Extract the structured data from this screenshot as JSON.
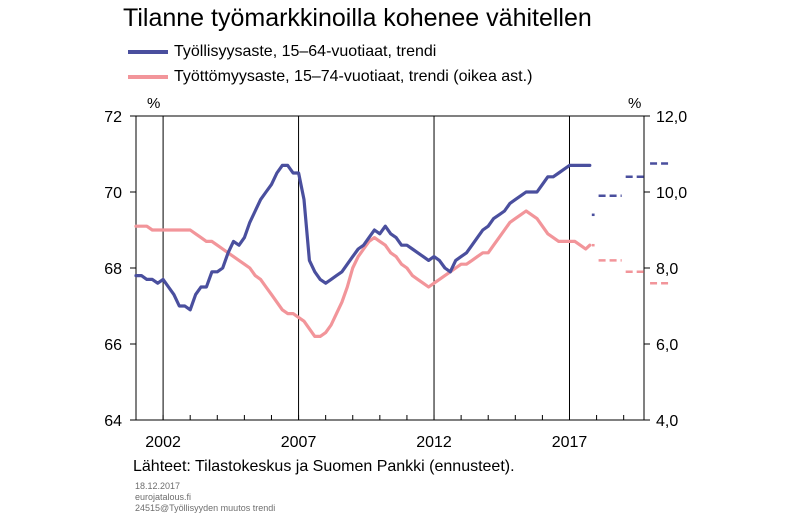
{
  "title": "Tilanne työmarkkinoilla kohenee vähitellen",
  "source": "Lähteet:  Tilastokeskus ja Suomen Pankki (ennusteet).",
  "meta": {
    "date": "18.12.2017",
    "site": "eurojatalous.fi",
    "code": "24515@Työllisyyden muutos trendi"
  },
  "colors": {
    "employment": "#4a4f9e",
    "unemployment": "#f2959a",
    "grid": "#000000"
  },
  "chart_data": {
    "type": "line",
    "title": "Tilanne työmarkkinoilla kohenee vähitellen",
    "x_ticks": [
      "2002",
      "2007",
      "2012",
      "2017"
    ],
    "x_range": [
      2001.0,
      2019.75
    ],
    "y_left": {
      "unit": "%",
      "range": [
        64,
        72
      ],
      "ticks": [
        "72",
        "70",
        "68",
        "66",
        "64"
      ]
    },
    "y_right": {
      "unit": "%",
      "range": [
        4.0,
        12.0
      ],
      "ticks": [
        "12,0",
        "10,0",
        "8,0",
        "6,0",
        "4,0"
      ]
    },
    "grid": "vertical",
    "legend_position": "top-left",
    "series": [
      {
        "name": "Työllisyysaste, 15–64-vuotiaat, trendi",
        "axis": "left",
        "x": [
          2001.0,
          2001.2,
          2001.4,
          2001.6,
          2001.8,
          2002.0,
          2002.2,
          2002.4,
          2002.6,
          2002.8,
          2003.0,
          2003.2,
          2003.4,
          2003.6,
          2003.8,
          2004.0,
          2004.2,
          2004.4,
          2004.6,
          2004.8,
          2005.0,
          2005.2,
          2005.4,
          2005.6,
          2005.8,
          2006.0,
          2006.2,
          2006.4,
          2006.6,
          2006.8,
          2007.0,
          2007.2,
          2007.4,
          2007.6,
          2007.8,
          2008.0,
          2008.2,
          2008.4,
          2008.6,
          2008.8,
          2009.0,
          2009.2,
          2009.4,
          2009.6,
          2009.8,
          2010.0,
          2010.2,
          2010.4,
          2010.6,
          2010.8,
          2011.0,
          2011.2,
          2011.4,
          2011.6,
          2011.8,
          2012.0,
          2012.2,
          2012.4,
          2012.6,
          2012.8,
          2013.0,
          2013.2,
          2013.4,
          2013.6,
          2013.8,
          2014.0,
          2014.2,
          2014.4,
          2014.6,
          2014.8,
          2015.0,
          2015.2,
          2015.4,
          2015.6,
          2015.8,
          2016.0,
          2016.2,
          2016.4,
          2016.6,
          2016.8,
          2017.0,
          2017.2,
          2017.4,
          2017.6,
          2017.75
        ],
        "values": [
          67.8,
          67.8,
          67.7,
          67.7,
          67.6,
          67.7,
          67.5,
          67.3,
          67.0,
          67.0,
          66.9,
          67.3,
          67.5,
          67.5,
          67.9,
          67.9,
          68.0,
          68.4,
          68.7,
          68.6,
          68.8,
          69.2,
          69.5,
          69.8,
          70.0,
          70.2,
          70.5,
          70.7,
          70.7,
          70.5,
          70.5,
          69.8,
          68.2,
          67.9,
          67.7,
          67.6,
          67.7,
          67.8,
          67.9,
          68.1,
          68.3,
          68.5,
          68.6,
          68.8,
          69.0,
          68.9,
          69.1,
          68.9,
          68.8,
          68.6,
          68.6,
          68.5,
          68.4,
          68.3,
          68.2,
          68.3,
          68.2,
          68.0,
          67.9,
          68.2,
          68.3,
          68.4,
          68.6,
          68.8,
          69.0,
          69.1,
          69.3,
          69.4,
          69.5,
          69.7,
          69.8,
          69.9,
          70.0,
          70.0,
          70.0,
          70.2,
          70.4,
          70.4,
          70.5,
          70.6,
          70.7,
          70.7,
          70.7,
          70.7,
          70.7
        ]
      },
      {
        "name": "Työttömyysaste, 15–74-vuotiaat, trendi (oikea ast.)",
        "axis": "right",
        "x": [
          2001.0,
          2001.2,
          2001.4,
          2001.6,
          2001.8,
          2002.0,
          2002.2,
          2002.4,
          2002.6,
          2002.8,
          2003.0,
          2003.2,
          2003.4,
          2003.6,
          2003.8,
          2004.0,
          2004.2,
          2004.4,
          2004.6,
          2004.8,
          2005.0,
          2005.2,
          2005.4,
          2005.6,
          2005.8,
          2006.0,
          2006.2,
          2006.4,
          2006.6,
          2006.8,
          2007.0,
          2007.2,
          2007.4,
          2007.6,
          2007.8,
          2008.0,
          2008.2,
          2008.4,
          2008.6,
          2008.8,
          2009.0,
          2009.2,
          2009.4,
          2009.6,
          2009.8,
          2010.0,
          2010.2,
          2010.4,
          2010.6,
          2010.8,
          2011.0,
          2011.2,
          2011.4,
          2011.6,
          2011.8,
          2012.0,
          2012.2,
          2012.4,
          2012.6,
          2012.8,
          2013.0,
          2013.2,
          2013.4,
          2013.6,
          2013.8,
          2014.0,
          2014.2,
          2014.4,
          2014.6,
          2014.8,
          2015.0,
          2015.2,
          2015.4,
          2015.6,
          2015.8,
          2016.0,
          2016.2,
          2016.4,
          2016.6,
          2016.8,
          2017.0,
          2017.2,
          2017.4,
          2017.6,
          2017.75
        ],
        "values": [
          9.1,
          9.1,
          9.1,
          9.0,
          9.0,
          9.0,
          9.0,
          9.0,
          9.0,
          9.0,
          9.0,
          8.9,
          8.8,
          8.7,
          8.7,
          8.6,
          8.5,
          8.4,
          8.3,
          8.2,
          8.1,
          8.0,
          7.8,
          7.7,
          7.5,
          7.3,
          7.1,
          6.9,
          6.8,
          6.8,
          6.7,
          6.6,
          6.4,
          6.2,
          6.2,
          6.3,
          6.5,
          6.8,
          7.1,
          7.5,
          8.0,
          8.3,
          8.5,
          8.7,
          8.8,
          8.7,
          8.6,
          8.4,
          8.3,
          8.1,
          8.0,
          7.8,
          7.7,
          7.6,
          7.5,
          7.6,
          7.7,
          7.8,
          7.9,
          8.0,
          8.1,
          8.1,
          8.2,
          8.3,
          8.4,
          8.4,
          8.6,
          8.8,
          9.0,
          9.2,
          9.3,
          9.4,
          9.5,
          9.4,
          9.3,
          9.1,
          8.9,
          8.8,
          8.7,
          8.7,
          8.7,
          8.7,
          8.6,
          8.5,
          8.6
        ]
      }
    ],
    "forecasts": [
      {
        "series": "Työllisyysaste, 15–64-vuotiaat, trendi",
        "axis": "left",
        "segments": [
          {
            "x": [
              2017.75,
              2018.0
            ],
            "value": 69.4
          },
          {
            "x": [
              2018.0,
              2019.0
            ],
            "value": 69.9
          },
          {
            "x": [
              2019.0,
              2019.9
            ],
            "value": 70.4
          },
          {
            "x": [
              2019.9,
              2020.8
            ],
            "value": 70.75
          }
        ]
      },
      {
        "series": "Työttömyysaste, 15–74-vuotiaat, trendi (oikea ast.)",
        "axis": "right",
        "segments": [
          {
            "x": [
              2017.75,
              2018.0
            ],
            "value": 8.6
          },
          {
            "x": [
              2018.0,
              2019.0
            ],
            "value": 8.2
          },
          {
            "x": [
              2019.0,
              2019.9
            ],
            "value": 7.9
          },
          {
            "x": [
              2019.9,
              2020.8
            ],
            "value": 7.6
          }
        ]
      }
    ]
  }
}
